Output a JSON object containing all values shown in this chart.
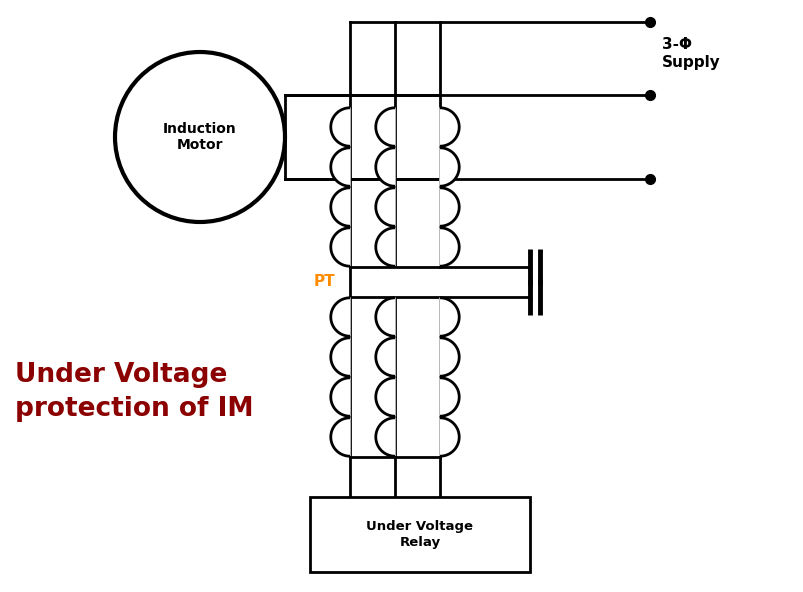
{
  "label_title": "Under Voltage\nprotection of IM",
  "label_color": "#8B0000",
  "motor_label": "Induction\nMotor",
  "supply_label": "3-Φ\nSupply",
  "pt_label": "PT",
  "relay_label": "Under Voltage\nRelay",
  "line_color": "#000000",
  "background_color": "#ffffff",
  "fig_width": 8.04,
  "fig_height": 5.92
}
